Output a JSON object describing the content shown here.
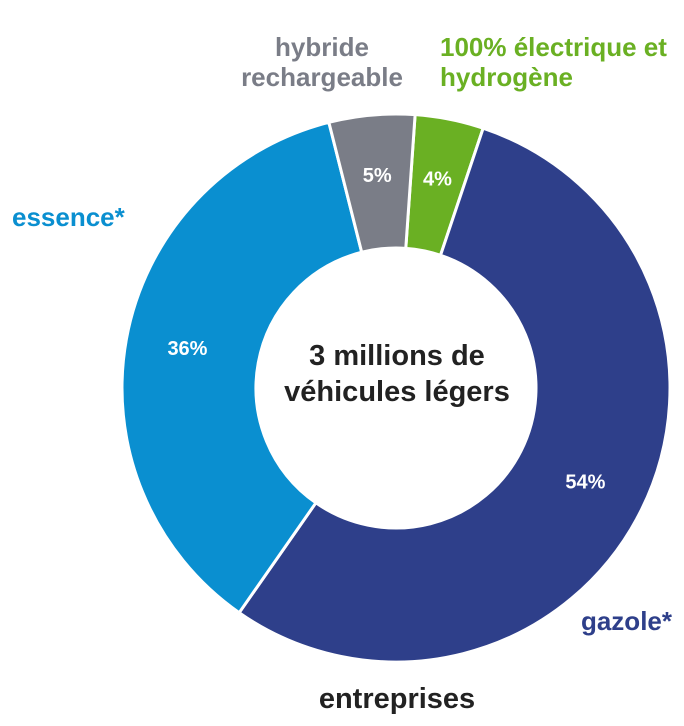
{
  "chart_data": {
    "type": "donut",
    "title": "entreprises",
    "center_label": "3 millions de véhicules légers",
    "categories": [
      "100% électrique et hydrogène",
      "gazole*",
      "essence*",
      "hybride rechargeable"
    ],
    "values": [
      4,
      54,
      36,
      5
    ],
    "value_labels": [
      "4%",
      "54%",
      "36%",
      "5%"
    ],
    "colors": [
      "#6ab023",
      "#2e3f8a",
      "#0a8fd0",
      "#7a7d87"
    ]
  }
}
